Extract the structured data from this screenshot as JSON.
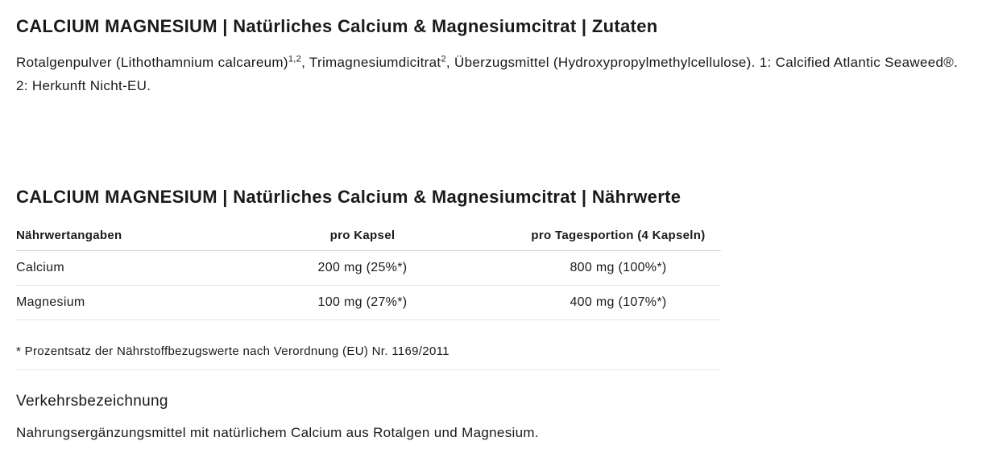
{
  "section1": {
    "heading": "CALCIUM MAGNESIUM | Natürliches Calcium & Magnesiumcitrat | Zutaten",
    "ingredients_part1": "Rotalgenpulver (Lithothamnium calcareum)",
    "sup1": "1,2",
    "ingredients_part2": ", Trimagnesiumdicitrat",
    "sup2": "2",
    "ingredients_part3": ", Überzugsmittel (Hydroxypropylmethylcellulose). 1: Calcified Atlantic Seaweed®. 2: Herkunft Nicht-EU."
  },
  "section2": {
    "heading": "CALCIUM MAGNESIUM | Natürliches Calcium & Magnesiumcitrat | Nährwerte",
    "table": {
      "headers": {
        "col1": "Nährwertangaben",
        "col2": "pro Kapsel",
        "col3": "pro Tagesportion (4 Kapseln)"
      },
      "rows": [
        {
          "name": "Calcium",
          "capsule": "200 mg (25%*)",
          "portion": "800 mg (100%*)"
        },
        {
          "name": "Magnesium",
          "capsule": "100 mg (27%*)",
          "portion": "400 mg (107%*)"
        }
      ],
      "footnote": "* Prozentsatz der Nährstoffbezugswerte nach Verordnung (EU) Nr. 1169/2011"
    },
    "subheading": "Verkehrsbezeichnung",
    "description": "Nahrungsergänzungsmittel mit natürlichem Calcium aus Rotalgen und Magnesium."
  }
}
